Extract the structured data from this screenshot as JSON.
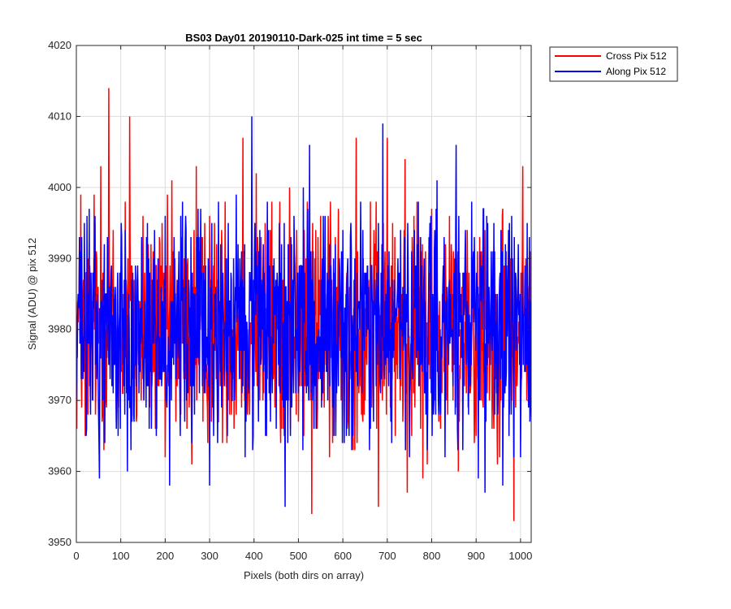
{
  "chart_data": {
    "type": "line",
    "title": "BS03 Day01 20190110-Dark-025 int time = 5 sec",
    "xlabel": "Pixels (both dirs on array)",
    "ylabel": "Signal (ADU) @ pix 512",
    "xlim": [
      0,
      1024
    ],
    "ylim": [
      3950,
      4020
    ],
    "xticks": [
      0,
      100,
      200,
      300,
      400,
      500,
      600,
      700,
      800,
      900,
      1000
    ],
    "yticks": [
      3950,
      3960,
      3970,
      3980,
      3990,
      4000,
      4010,
      4020
    ],
    "grid": true,
    "legend_position": "outside-top-right",
    "series": [
      {
        "name": "Cross Pix 512",
        "color": "#ff0000",
        "points": [
          [
            0,
            3984
          ],
          [
            10,
            3999
          ],
          [
            20,
            3965
          ],
          [
            40,
            3999
          ],
          [
            55,
            4003
          ],
          [
            65,
            3972
          ],
          [
            73,
            4014
          ],
          [
            90,
            3967
          ],
          [
            110,
            3998
          ],
          [
            120,
            4010
          ],
          [
            135,
            3967
          ],
          [
            150,
            3996
          ],
          [
            170,
            3972
          ],
          [
            200,
            3962
          ],
          [
            215,
            4001
          ],
          [
            235,
            3968
          ],
          [
            260,
            3961
          ],
          [
            270,
            4003
          ],
          [
            285,
            3967
          ],
          [
            300,
            3996
          ],
          [
            320,
            3967
          ],
          [
            335,
            3998
          ],
          [
            355,
            3966
          ],
          [
            375,
            4007
          ],
          [
            390,
            3968
          ],
          [
            405,
            4002
          ],
          [
            420,
            3970
          ],
          [
            440,
            3998
          ],
          [
            460,
            3964
          ],
          [
            480,
            4000
          ],
          [
            500,
            3967
          ],
          [
            520,
            3998
          ],
          [
            530,
            3954
          ],
          [
            550,
            3996
          ],
          [
            570,
            3962
          ],
          [
            590,
            3997
          ],
          [
            610,
            3966
          ],
          [
            630,
            4007
          ],
          [
            645,
            3967
          ],
          [
            662,
            3998
          ],
          [
            680,
            3955
          ],
          [
            700,
            4007
          ],
          [
            718,
            3965
          ],
          [
            740,
            4004
          ],
          [
            745,
            3957
          ],
          [
            760,
            3996
          ],
          [
            780,
            3959
          ],
          [
            800,
            3997
          ],
          [
            820,
            3966
          ],
          [
            840,
            3996
          ],
          [
            860,
            3960
          ],
          [
            880,
            3994
          ],
          [
            900,
            3965
          ],
          [
            920,
            3994
          ],
          [
            940,
            3966
          ],
          [
            960,
            3997
          ],
          [
            985,
            3953
          ],
          [
            1005,
            4003
          ],
          [
            1024,
            3970
          ]
        ]
      },
      {
        "name": "Along Pix 512",
        "color": "#0000ff",
        "points": [
          [
            0,
            3970
          ],
          [
            10,
            3991
          ],
          [
            22,
            3965
          ],
          [
            40,
            3990
          ],
          [
            52,
            3959
          ],
          [
            70,
            3993
          ],
          [
            90,
            3966
          ],
          [
            110,
            3994
          ],
          [
            130,
            3967
          ],
          [
            160,
            3995
          ],
          [
            180,
            3965
          ],
          [
            200,
            3996
          ],
          [
            210,
            3958
          ],
          [
            235,
            3996
          ],
          [
            260,
            3964
          ],
          [
            280,
            3997
          ],
          [
            300,
            3958
          ],
          [
            320,
            3998
          ],
          [
            340,
            3965
          ],
          [
            360,
            3999
          ],
          [
            380,
            3962
          ],
          [
            395,
            4010
          ],
          [
            410,
            3967
          ],
          [
            430,
            3998
          ],
          [
            450,
            3966
          ],
          [
            470,
            3955
          ],
          [
            490,
            3996
          ],
          [
            510,
            3963
          ],
          [
            525,
            4006
          ],
          [
            540,
            3966
          ],
          [
            560,
            3996
          ],
          [
            580,
            3965
          ],
          [
            600,
            3994
          ],
          [
            620,
            3963
          ],
          [
            640,
            3998
          ],
          [
            660,
            3963
          ],
          [
            690,
            4009
          ],
          [
            710,
            3964
          ],
          [
            730,
            3994
          ],
          [
            750,
            3962
          ],
          [
            770,
            3998
          ],
          [
            790,
            3963
          ],
          [
            810,
            3997
          ],
          [
            830,
            3962
          ],
          [
            855,
            4006
          ],
          [
            870,
            3963
          ],
          [
            890,
            3998
          ],
          [
            905,
            3959
          ],
          [
            920,
            3957
          ],
          [
            940,
            3995
          ],
          [
            960,
            3958
          ],
          [
            980,
            3996
          ],
          [
            1000,
            3962
          ],
          [
            1015,
            3995
          ],
          [
            1024,
            3980
          ]
        ]
      }
    ]
  }
}
